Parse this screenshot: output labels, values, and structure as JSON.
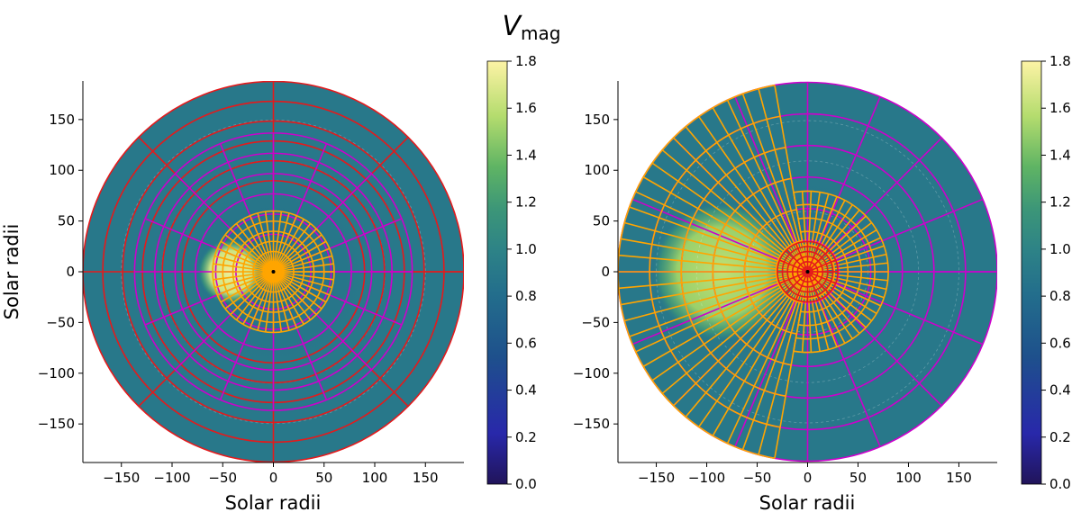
{
  "chart_data": [
    {
      "type": "heatmap",
      "subtype": "polar-amr-grid",
      "title_main": "V",
      "title_sub": "mag",
      "xlabel": "Solar radii",
      "ylabel": "Solar radii",
      "xlim": [
        -188,
        188
      ],
      "ylim": [
        -188,
        188
      ],
      "xticks": [
        -150,
        -100,
        -50,
        0,
        50,
        100,
        150
      ],
      "xtick_labels": [
        "−150",
        "−100",
        "−50",
        "0",
        "50",
        "100",
        "150"
      ],
      "yticks": [
        -150,
        -100,
        -50,
        0,
        50,
        100,
        150
      ],
      "ytick_labels": [
        "−150",
        "−100",
        "−50",
        "0",
        "50",
        "100",
        "150"
      ],
      "domain_radius": 188,
      "background_value": 0.9,
      "blob": {
        "cx": -42,
        "cy": 0,
        "r": 32,
        "value": 1.75
      },
      "grid_levels": [
        {
          "r_inner": 90,
          "r_outer": 188,
          "n_theta": 8,
          "color": "#e41a1c"
        },
        {
          "r_inner": 37,
          "r_outer": 137,
          "n_theta": 16,
          "color": "#cc00cc"
        },
        {
          "r_inner": 0,
          "r_outer": 60,
          "n_theta": 48,
          "color": "#ffa500"
        }
      ]
    },
    {
      "type": "heatmap",
      "subtype": "polar-amr-grid",
      "xlabel": "Solar radii",
      "xlim": [
        -188,
        188
      ],
      "ylim": [
        -188,
        188
      ],
      "xticks": [
        -150,
        -100,
        -50,
        0,
        50,
        100,
        150
      ],
      "xtick_labels": [
        "−150",
        "−100",
        "−50",
        "0",
        "50",
        "100",
        "150"
      ],
      "yticks": [
        -150,
        -100,
        -50,
        0,
        50,
        100,
        150
      ],
      "ytick_labels": [
        "−150",
        "−100",
        "−50",
        "0",
        "50",
        "100",
        "150"
      ],
      "domain_radius": 188,
      "background_value": 0.9,
      "blob": {
        "cx": -85,
        "cy": 0,
        "r": 68,
        "value": 1.6
      },
      "grid_levels": [
        {
          "r_inner": 0,
          "r_outer": 188,
          "n_theta": 16,
          "color": "#cc00cc"
        },
        {
          "r_inner": 0,
          "r_outer": 188,
          "n_theta": 32,
          "theta_range": [
            100,
            260
          ],
          "color": "#ffa500"
        },
        {
          "r_inner": 0,
          "r_outer": 80,
          "n_theta": 32,
          "theta_range": [
            -100,
            100
          ],
          "color": "#ffa500"
        },
        {
          "r_inner": 0,
          "r_outer": 30,
          "n_theta": 16,
          "color": "#e41a1c"
        }
      ]
    }
  ],
  "colorbar": {
    "ticks": [
      0.0,
      0.2,
      0.4,
      0.6,
      0.8,
      1.0,
      1.2,
      1.4,
      1.6,
      1.8
    ],
    "tick_labels": [
      "0.0",
      "0.2",
      "0.4",
      "0.6",
      "0.8",
      "1.0",
      "1.2",
      "1.4",
      "1.6",
      "1.8"
    ],
    "range": [
      0.0,
      1.8
    ],
    "colormap": "viridis-like"
  }
}
